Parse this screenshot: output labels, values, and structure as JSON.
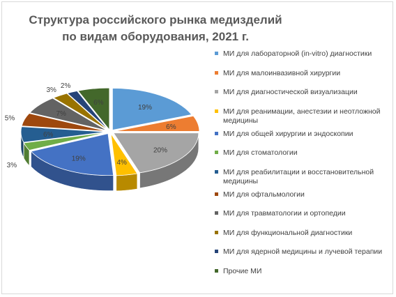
{
  "chart_data": {
    "type": "pie",
    "title": "Структура российского рынка медизделий по видам оборудования, 2021 г.",
    "categories": [
      "МИ для лабораторной (in-vitro) диагностики",
      "МИ для малоинвазивной хирургии",
      "МИ для диагностической визуализации",
      "МИ для реанимации, анестезии и неотложной медицины",
      "МИ для общей хирургии и эндоскопии",
      "МИ для стоматологии",
      "МИ для реабилитации и восстановительной медицины",
      "МИ для офтальмологии",
      "МИ для травматологии и ортопедии",
      "МИ для функциональной диагностики",
      "МИ для ядерной медицины и лучевой терапии",
      "Прочие МИ"
    ],
    "values": [
      19,
      6,
      20,
      4,
      19,
      3,
      6,
      5,
      7,
      3,
      2,
      6
    ],
    "data_labels": [
      "19%",
      "6%",
      "20%",
      "4%",
      "19%",
      "3%",
      "6%",
      "5%",
      "7%",
      "3%",
      "2%",
      "6%"
    ],
    "colors": [
      "#5b9bd5",
      "#ed7d31",
      "#a5a5a5",
      "#ffc000",
      "#4472c4",
      "#70ad47",
      "#255e91",
      "#9e480e",
      "#636363",
      "#997300",
      "#264478",
      "#43682b"
    ],
    "legend_position": "right",
    "style": "3d-exploded-pie"
  }
}
